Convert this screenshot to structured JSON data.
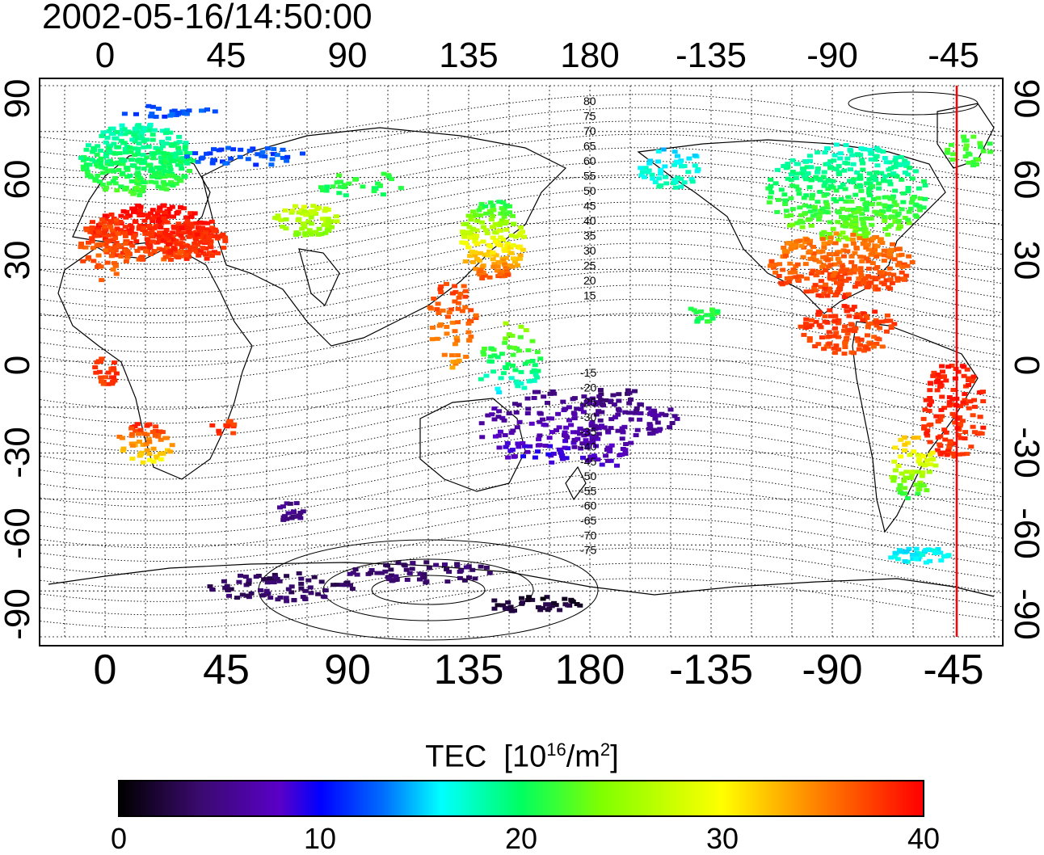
{
  "title": "2002-05-16/14:50:00",
  "x_ticks_top": [
    "0",
    "45",
    "90",
    "135",
    "180",
    "-135",
    "-90",
    "-45"
  ],
  "x_ticks_bottom": [
    "0",
    "45",
    "90",
    "135",
    "180",
    "-135",
    "-90",
    "-45"
  ],
  "y_ticks_left": [
    "90",
    "60",
    "30",
    "0",
    "-30",
    "-60",
    "-90"
  ],
  "y_ticks_right": [
    "90",
    "60",
    "30",
    "0",
    "-30",
    "-60",
    "-90"
  ],
  "mlat_labels_north": [
    "80",
    "75",
    "70",
    "65",
    "60",
    "55",
    "50",
    "45",
    "40",
    "35",
    "30",
    "25",
    "20",
    "15"
  ],
  "mlat_labels_south": [
    "-15",
    "-20",
    "-25",
    "-30",
    "-35",
    "-40",
    "-45",
    "-50",
    "-55",
    "-60",
    "-65",
    "-70",
    "-75"
  ],
  "colorbar": {
    "title": "TEC",
    "unit_prefix": "[10",
    "unit_exp": "16",
    "unit_mid": "/m",
    "unit_exp2": "2",
    "unit_suffix": "]",
    "ticks": [
      "0",
      "10",
      "20",
      "30",
      "40"
    ],
    "range": [
      0,
      40
    ]
  },
  "colors": {
    "low": "#000000",
    "mid": "#00ff60",
    "high": "#ff0000",
    "terminator_line": "#ff0000"
  },
  "map": {
    "lon_axis": "0 to 360 east, shown as 0..180,-135..-45",
    "lat_range": [
      -90,
      90
    ],
    "terminator_longitude": -45
  }
}
